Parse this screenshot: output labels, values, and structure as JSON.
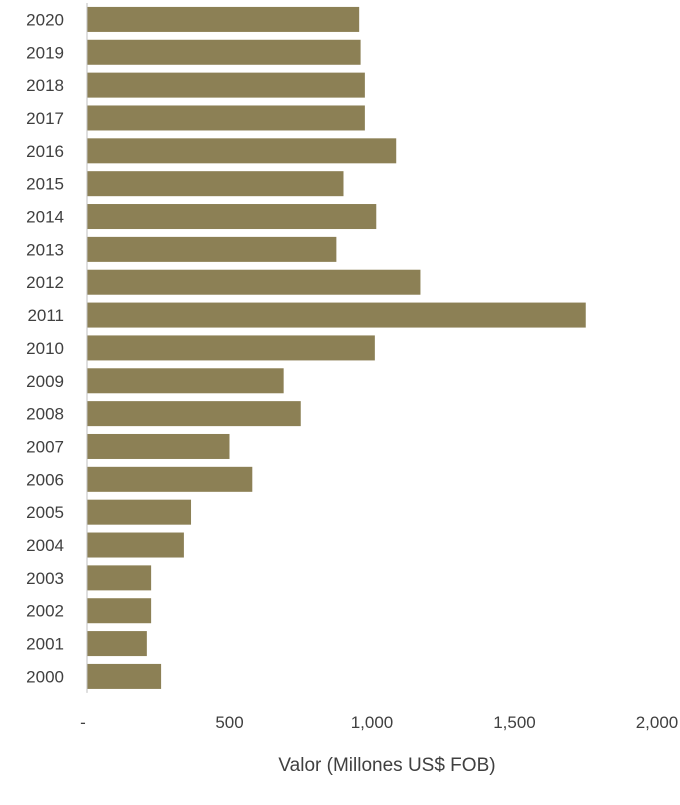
{
  "chart_data": {
    "type": "bar",
    "orientation": "horizontal",
    "categories": [
      "2020",
      "2019",
      "2018",
      "2017",
      "2016",
      "2015",
      "2014",
      "2013",
      "2012",
      "2011",
      "2010",
      "2009",
      "2008",
      "2007",
      "2006",
      "2005",
      "2004",
      "2003",
      "2002",
      "2001",
      "2000"
    ],
    "values": [
      955,
      960,
      975,
      975,
      1085,
      900,
      1015,
      875,
      1170,
      1750,
      1010,
      690,
      750,
      500,
      580,
      365,
      340,
      225,
      225,
      210,
      260
    ],
    "xlabel": "Valor (Millones US$ FOB)",
    "ylabel": "",
    "xlim": [
      0,
      2000
    ],
    "xticks": [
      {
        "value": 0,
        "label": "-"
      },
      {
        "value": 500,
        "label": "500"
      },
      {
        "value": 1000,
        "label": "1,000"
      },
      {
        "value": 1500,
        "label": "1,500"
      },
      {
        "value": 2000,
        "label": "2,000"
      }
    ],
    "bar_color": "#8c8055",
    "grid": false,
    "legend": "none"
  }
}
